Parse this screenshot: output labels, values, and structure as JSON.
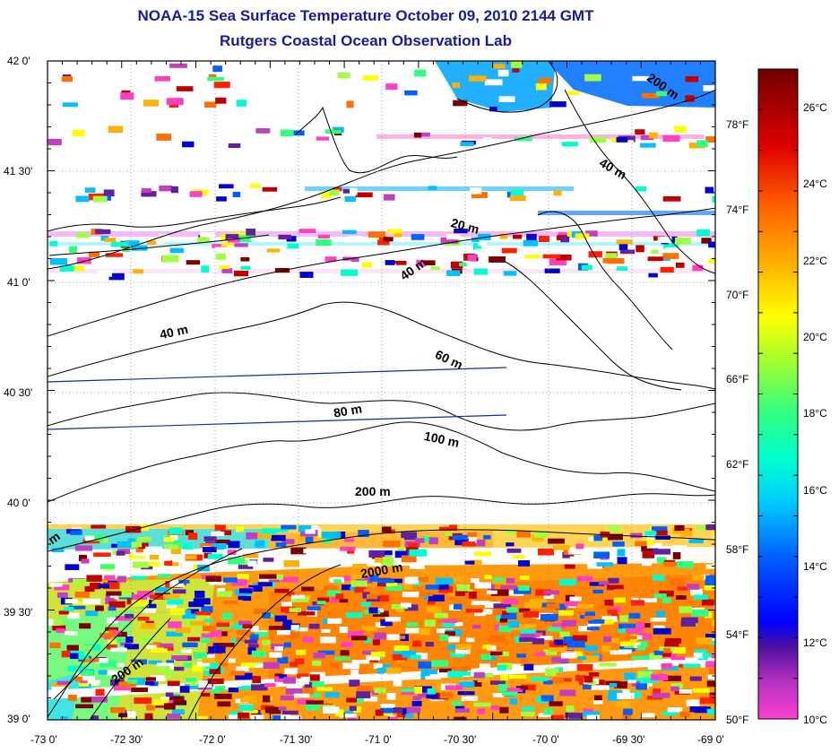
{
  "title": "NOAA-15 Sea Surface Temperature October 09, 2010 2144 GMT",
  "subtitle": "Rutgers Coastal Ocean Observation Lab",
  "map": {
    "lat_labels": [
      "42 0'",
      "41 30'",
      "41 0'",
      "40 30'",
      "40 0'",
      "39 30'",
      "39 0'"
    ],
    "lon_labels": [
      "-73 0'",
      "-72 30'",
      "-72 0'",
      "-71 30'",
      "-71 0'",
      "-70 30'",
      "-70 0'",
      "-69 30'",
      "-69 0'"
    ],
    "fahrenheit_labels": [
      "78°F",
      "74°F",
      "70°F",
      "66°F",
      "62°F",
      "58°F",
      "54°F",
      "50°F"
    ],
    "depth_labels": [
      "200 m",
      "40 m",
      "20 m",
      "40 m",
      "40 m",
      "60 m",
      "80 m",
      "100 m",
      "200 m",
      "2000 m",
      "200 m",
      "m"
    ]
  },
  "colorbar": {
    "labels": [
      "26°C",
      "24°C",
      "22°C",
      "20°C",
      "18°C",
      "16°C",
      "14°C",
      "12°C",
      "10°C"
    ],
    "colors": [
      "#7a0000",
      "#c00000",
      "#ff2000",
      "#ff7000",
      "#ffb000",
      "#ffff00",
      "#a0ff40",
      "#30ff80",
      "#00ffd0",
      "#00c0ff",
      "#0060ff",
      "#0000d0",
      "#6020a0",
      "#c040c0",
      "#ff40c0"
    ]
  }
}
